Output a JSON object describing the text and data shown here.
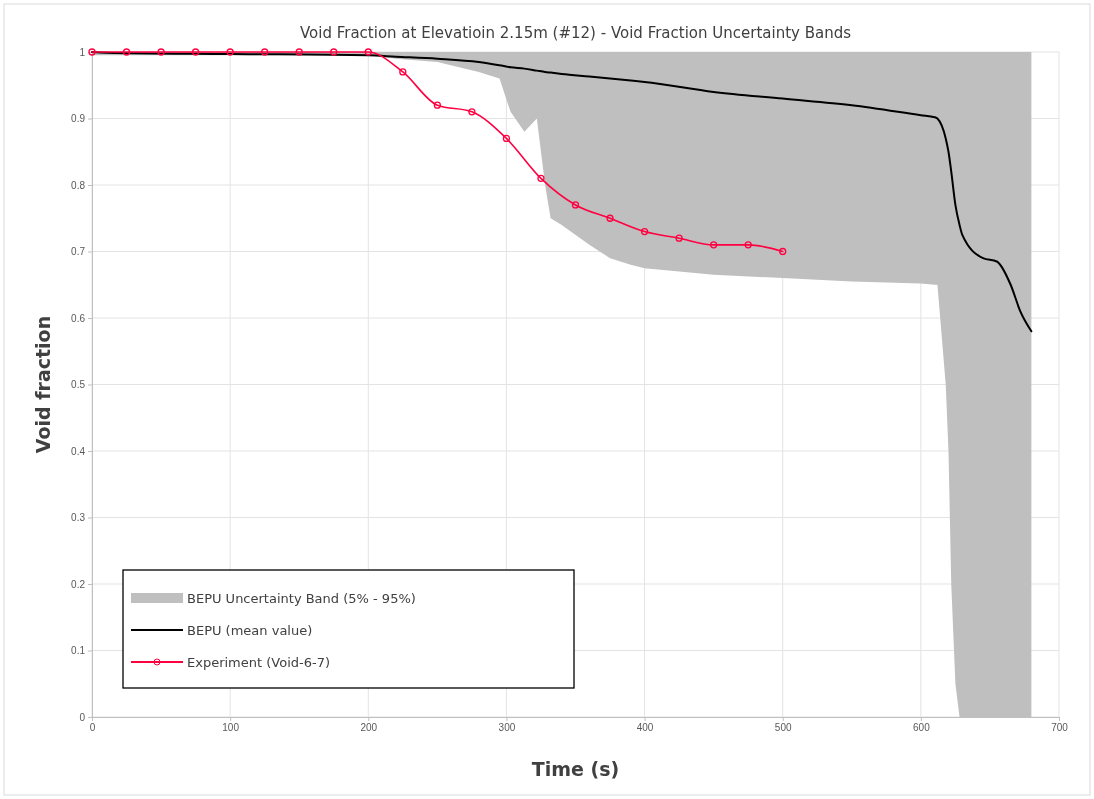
{
  "chart_data": {
    "type": "line",
    "title": "Void Fraction at Elevatioin 2.15m (#12) - Void Fraction Uncertainty Bands",
    "xlabel": "Time (s)",
    "ylabel": "Void fraction",
    "xlim": [
      0,
      700
    ],
    "xticks": [
      0,
      100,
      200,
      300,
      400,
      500,
      600,
      700
    ],
    "ylim": [
      0,
      1
    ],
    "yticks": [
      0,
      0.1,
      0.2,
      0.3,
      0.4,
      0.5,
      0.6,
      0.7,
      0.8,
      0.9,
      1
    ],
    "grid": true,
    "legend": "bottom left",
    "line_style": "solid",
    "annotations": [
      "BEPU Uncertainty Band (5% - 95%)"
    ],
    "series": [
      {
        "name": "BEPU (mean value)",
        "color": "#000000",
        "marker": "none",
        "x": [
          0,
          10,
          100,
          200,
          220,
          250,
          280,
          295,
          303,
          313,
          322,
          328,
          332,
          340,
          360,
          375,
          390,
          400,
          450,
          500,
          550,
          600,
          610,
          612,
          618,
          620,
          622,
          625,
          628,
          630,
          645,
          655,
          665,
          672,
          680
        ],
        "values": [
          1,
          0.999,
          0.997,
          0.995,
          0.993,
          0.99,
          0.985,
          0.98,
          0.977,
          0.975,
          0.972,
          0.97,
          0.969,
          0.967,
          0.963,
          0.96,
          0.957,
          0.955,
          0.94,
          0.93,
          0.92,
          0.905,
          0.902,
          0.9,
          0.87,
          0.85,
          0.82,
          0.77,
          0.74,
          0.725,
          0.69,
          0.685,
          0.65,
          0.61,
          0.58
        ],
        "lower": [
          0.995,
          0.995,
          0.995,
          0.995,
          0.99,
          0.985,
          0.97,
          0.96,
          0.91,
          0.88,
          0.9,
          0.8,
          0.75,
          0.74,
          0.71,
          0.69,
          0.68,
          0.675,
          0.665,
          0.66,
          0.655,
          0.652,
          0.65,
          0.65,
          0.5,
          0.4,
          0.2,
          0.05,
          0,
          0,
          0,
          0,
          0,
          0,
          0
        ],
        "upper": [
          1,
          1,
          1,
          1,
          1,
          1,
          1,
          1,
          1,
          1,
          1,
          1,
          1,
          1,
          1,
          1,
          1,
          1,
          1,
          1,
          1,
          1,
          1,
          1,
          1,
          1,
          1,
          1,
          1,
          1,
          1,
          1,
          1,
          1,
          1
        ]
      },
      {
        "name": "Experiment (Void-6-7)",
        "color": "#ff0040",
        "marker": "circle",
        "x": [
          0,
          25,
          50,
          75,
          100,
          125,
          150,
          175,
          200,
          225,
          250,
          275,
          300,
          325,
          350,
          375,
          400,
          425,
          450,
          475,
          500
        ],
        "values": [
          1,
          1,
          1,
          1,
          1,
          1,
          1,
          1,
          1,
          0.97,
          0.92,
          0.91,
          0.87,
          0.81,
          0.77,
          0.75,
          0.73,
          0.72,
          0.71,
          0.71,
          0.7
        ]
      }
    ]
  }
}
